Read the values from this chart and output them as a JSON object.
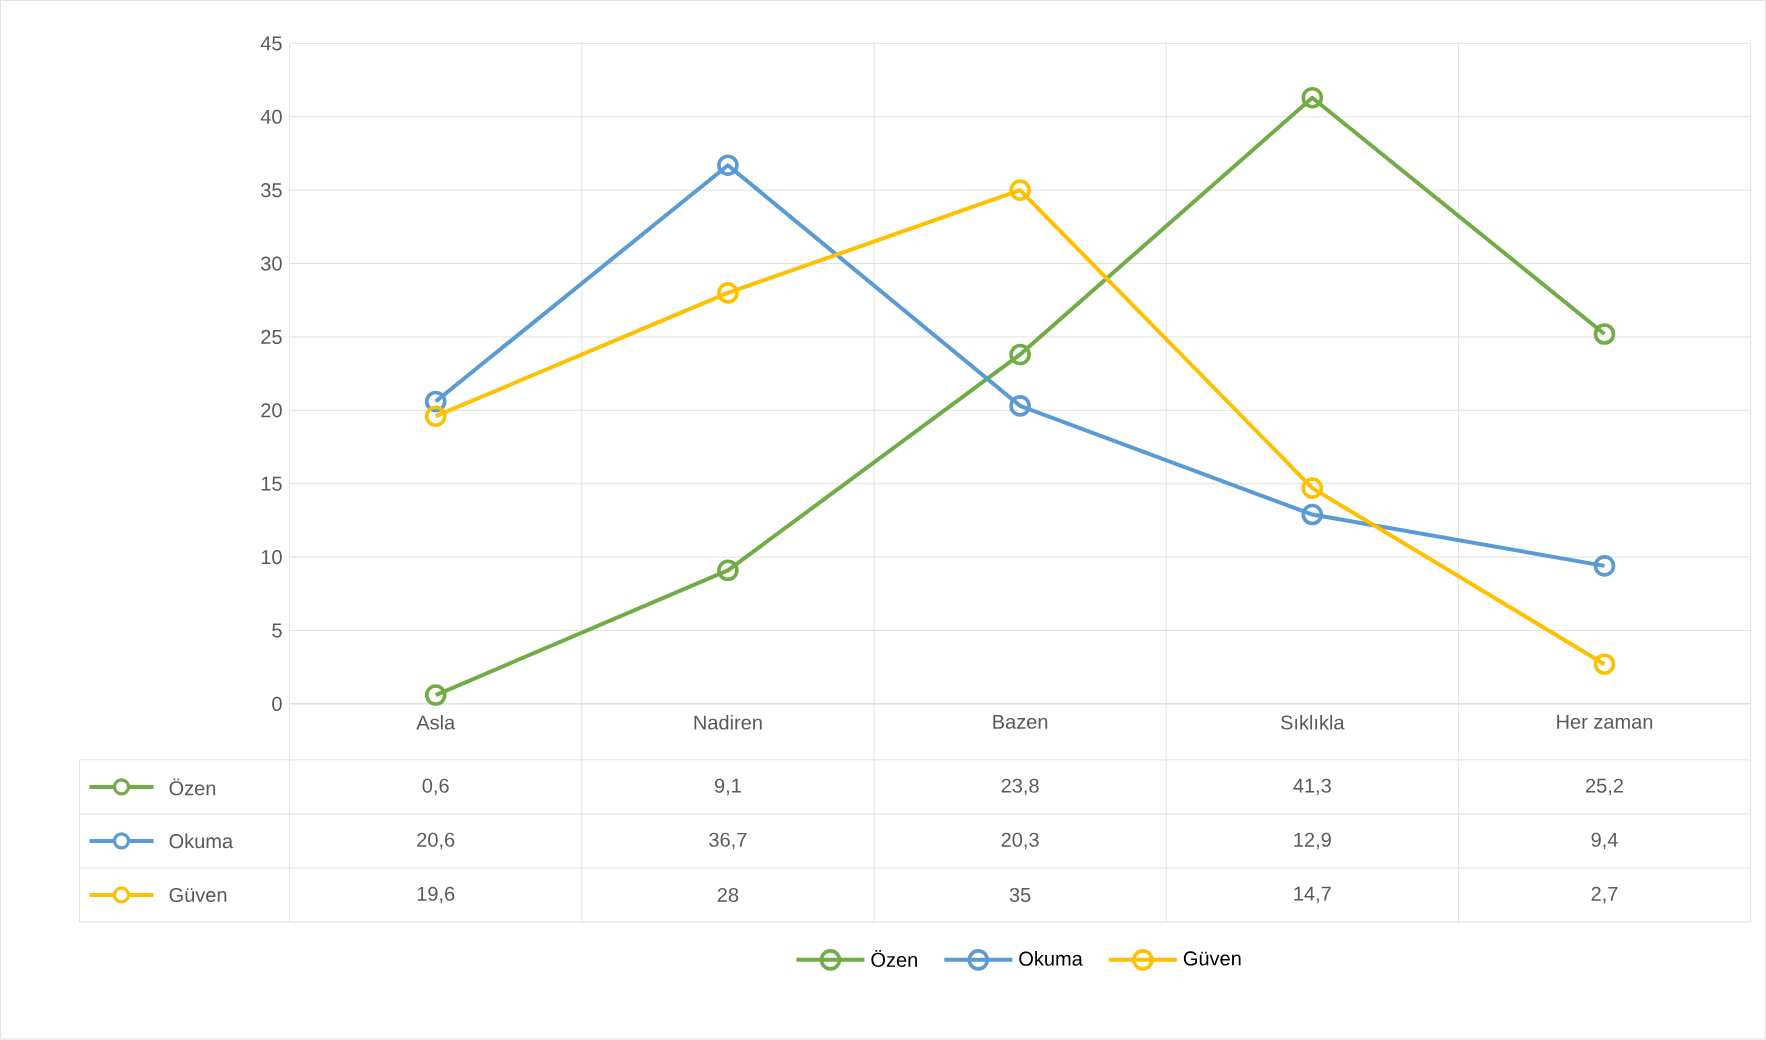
{
  "chart_data": {
    "type": "line",
    "categories": [
      "Asla",
      "Nadiren",
      "Bazen",
      "Sıklıkla",
      "Her zaman"
    ],
    "series": [
      {
        "name": "Özen",
        "color": "#70ad47",
        "values": [
          0.6,
          9.1,
          23.8,
          41.3,
          25.2
        ],
        "value_labels": [
          "0,6",
          "9,1",
          "23,8",
          "41,3",
          "25,2"
        ]
      },
      {
        "name": "Okuma",
        "color": "#5b9bd5",
        "values": [
          20.6,
          36.7,
          20.3,
          12.9,
          9.4
        ],
        "value_labels": [
          "20,6",
          "36,7",
          "20,3",
          "12,9",
          "9,4"
        ]
      },
      {
        "name": "Güven",
        "color": "#ffc000",
        "values": [
          19.6,
          28,
          35,
          14.7,
          2.7
        ],
        "value_labels": [
          "19,6",
          "28",
          "35",
          "14,7",
          "2,7"
        ]
      }
    ],
    "ylim": [
      0,
      45
    ],
    "yticks": [
      0,
      5,
      10,
      15,
      20,
      25,
      30,
      35,
      40,
      45
    ],
    "grid": true,
    "legend": "bottom",
    "marker": "circle",
    "line_style": "solid"
  }
}
